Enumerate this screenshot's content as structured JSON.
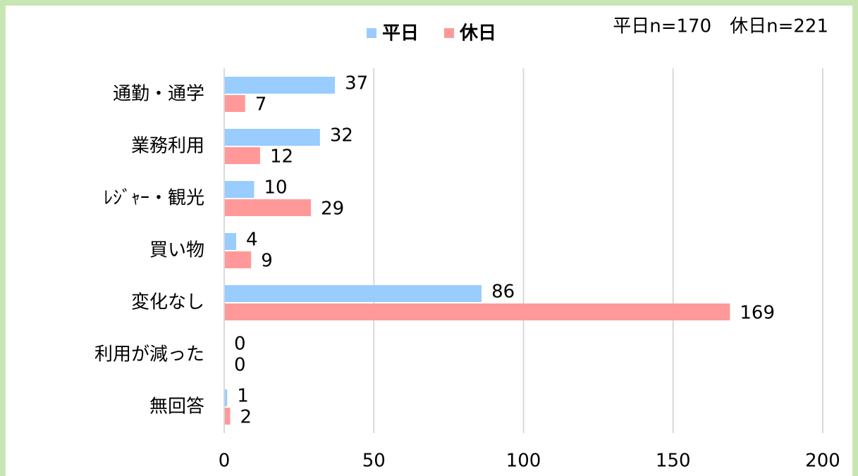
{
  "chart_data": {
    "type": "hbar",
    "annotation": "平日n=170　休日n=221",
    "categories": [
      "通勤・通学",
      "業務利用",
      "ﾚｼﾞｬｰ・観光",
      "買い物",
      "変化なし",
      "利用が減った",
      "無回答"
    ],
    "series": [
      {
        "name": "平日",
        "color": "#99ccff",
        "values": [
          37,
          32,
          10,
          4,
          86,
          0,
          1
        ]
      },
      {
        "name": "休日",
        "color": "#ff9999",
        "values": [
          7,
          12,
          29,
          9,
          169,
          0,
          2
        ]
      }
    ],
    "xlim": [
      0,
      200
    ],
    "xticks": [
      0,
      50,
      100,
      150,
      200
    ],
    "grid": true,
    "legend": "top"
  }
}
